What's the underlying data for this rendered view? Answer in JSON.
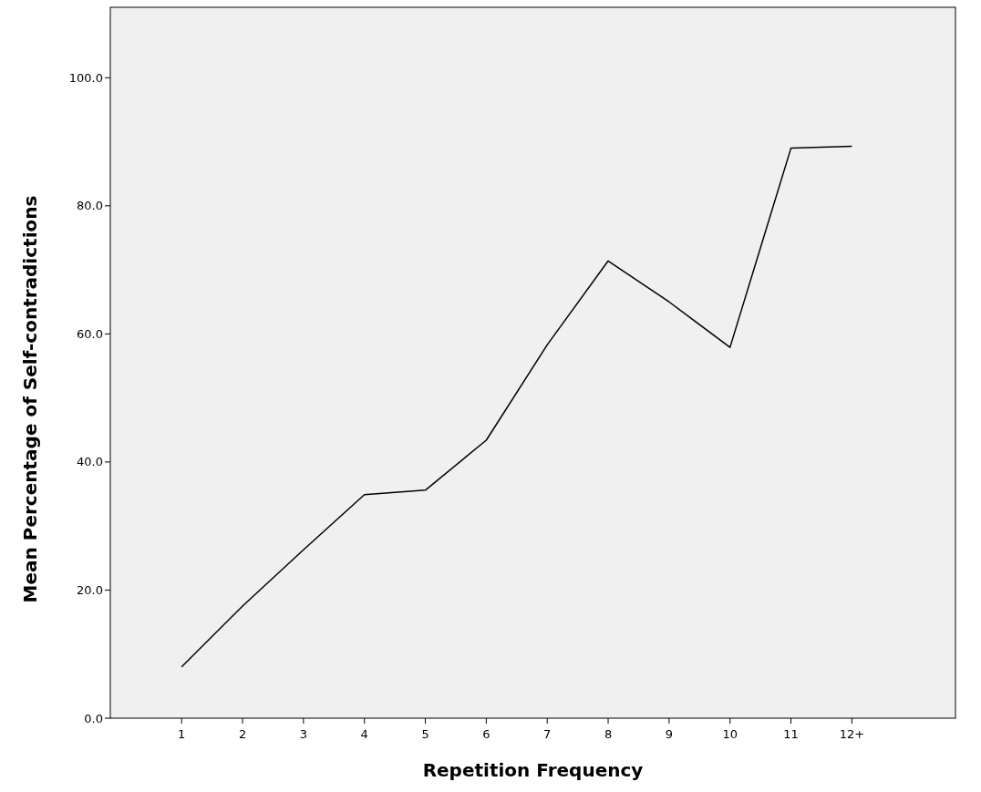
{
  "chart_data": {
    "type": "line",
    "xlabel": "Repetition Frequency",
    "ylabel": "Mean Percentage of Self-contradictions",
    "categories": [
      "1",
      "2",
      "3",
      "4",
      "5",
      "6",
      "7",
      "8",
      "9",
      "10",
      "11",
      "12+"
    ],
    "series": [
      {
        "color": "#000000",
        "values": [
          8.0,
          17.5,
          26.3,
          34.9,
          35.6,
          43.4,
          58.3,
          71.4,
          65.0,
          57.9,
          89.0,
          89.3
        ]
      }
    ],
    "ylim": [
      0,
      111
    ],
    "yticks": [
      {
        "value": 0,
        "label": "0.0"
      },
      {
        "value": 20,
        "label": "20.0"
      },
      {
        "value": 40,
        "label": "40.0"
      },
      {
        "value": 60,
        "label": "60.0"
      },
      {
        "value": 80,
        "label": "80.0"
      },
      {
        "value": 100,
        "label": "100.0"
      }
    ],
    "marker": "none",
    "line_style": "solid"
  }
}
